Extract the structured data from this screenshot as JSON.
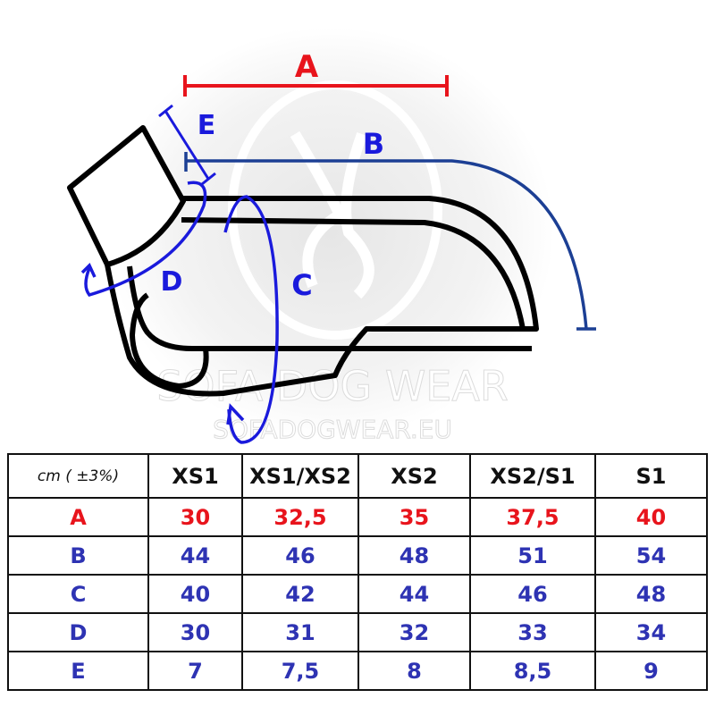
{
  "diagram": {
    "labels": {
      "A": "A",
      "B": "B",
      "C": "C",
      "D": "D",
      "E": "E"
    },
    "watermark": {
      "brand": "SOFA DOG WEAR",
      "url": "SOFADOGWEAR.EU"
    },
    "colors": {
      "A": "#e8141c",
      "B": "#1c3f94",
      "CDE": "#1a1adc",
      "outline": "#000000",
      "watermark": "#d9d9d9"
    }
  },
  "table": {
    "unit_label": "cm ( ±3%)",
    "columns": [
      "XS1",
      "XS1/XS2",
      "XS2",
      "XS2/S1",
      "S1"
    ],
    "rows": [
      {
        "label": "A",
        "values": [
          "30",
          "32,5",
          "35",
          "37,5",
          "40"
        ]
      },
      {
        "label": "B",
        "values": [
          "44",
          "46",
          "48",
          "51",
          "54"
        ]
      },
      {
        "label": "C",
        "values": [
          "40",
          "42",
          "44",
          "46",
          "48"
        ]
      },
      {
        "label": "D",
        "values": [
          "30",
          "31",
          "32",
          "33",
          "34"
        ]
      },
      {
        "label": "E",
        "values": [
          "7",
          "7,5",
          "8",
          "8,5",
          "9"
        ]
      }
    ]
  }
}
